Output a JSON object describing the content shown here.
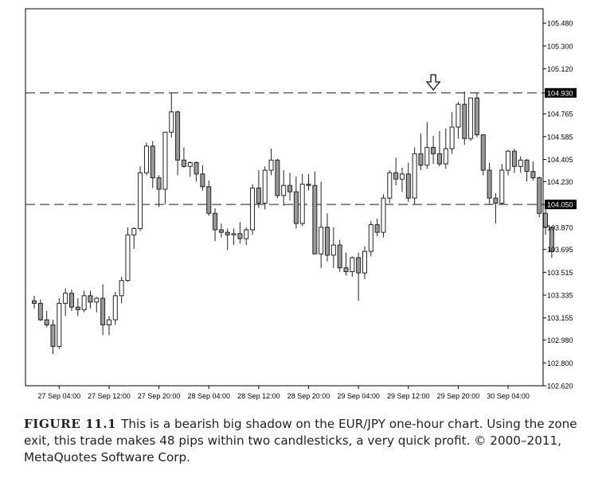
{
  "chart_data": {
    "type": "candlestick",
    "symbol": "EUR/JPY",
    "timeframe": "one-hour",
    "ylim": [
      102.62,
      105.6
    ],
    "y_ticks": [
      "105.480",
      "105.300",
      "105.120",
      "104.930",
      "104.765",
      "104.585",
      "104.405",
      "104.230",
      "104.050",
      "103.870",
      "103.695",
      "103.515",
      "103.335",
      "103.155",
      "102.980",
      "102.800",
      "102.620"
    ],
    "highlighted_ticks": [
      "104.930",
      "104.050"
    ],
    "x_tick_labels": [
      "27 Sep 04:00",
      "27 Sep 12:00",
      "27 Sep 20:00",
      "28 Sep 04:00",
      "28 Sep 12:00",
      "28 Sep 20:00",
      "29 Sep 04:00",
      "29 Sep 12:00",
      "29 Sep 20:00",
      "30 Sep 04:00"
    ],
    "x_tick_index": [
      4,
      12,
      20,
      28,
      36,
      44,
      52,
      60,
      68,
      76
    ],
    "horizontal_lines": [
      104.93,
      104.05
    ],
    "arrow": {
      "direction": "down",
      "at_index": 64
    },
    "candles": [
      [
        103.29,
        103.33,
        103.23,
        103.27
      ],
      [
        103.27,
        103.3,
        103.13,
        103.14
      ],
      [
        103.14,
        103.21,
        103.08,
        103.1
      ],
      [
        103.1,
        103.14,
        102.87,
        102.93
      ],
      [
        102.93,
        103.31,
        102.91,
        103.27
      ],
      [
        103.27,
        103.39,
        103.17,
        103.35
      ],
      [
        103.35,
        103.38,
        103.21,
        103.24
      ],
      [
        103.24,
        103.31,
        103.17,
        103.22
      ],
      [
        103.22,
        103.37,
        103.2,
        103.33
      ],
      [
        103.33,
        103.37,
        103.23,
        103.28
      ],
      [
        103.28,
        103.32,
        103.2,
        103.31
      ],
      [
        103.31,
        103.42,
        103.02,
        103.1
      ],
      [
        103.1,
        103.17,
        103.02,
        103.14
      ],
      [
        103.14,
        103.36,
        103.1,
        103.33
      ],
      [
        103.33,
        103.48,
        103.27,
        103.45
      ],
      [
        103.45,
        103.87,
        103.44,
        103.81
      ],
      [
        103.81,
        103.87,
        103.7,
        103.86
      ],
      [
        103.86,
        104.35,
        103.84,
        104.3
      ],
      [
        104.3,
        104.54,
        104.28,
        104.51
      ],
      [
        104.51,
        104.55,
        104.18,
        104.26
      ],
      [
        104.26,
        104.28,
        104.03,
        104.17
      ],
      [
        104.17,
        104.62,
        104.05,
        104.62
      ],
      [
        104.62,
        104.93,
        104.58,
        104.78
      ],
      [
        104.78,
        104.79,
        104.28,
        104.4
      ],
      [
        104.4,
        104.5,
        104.34,
        104.35
      ],
      [
        104.35,
        104.39,
        104.27,
        104.38
      ],
      [
        104.38,
        104.39,
        104.23,
        104.29
      ],
      [
        104.29,
        104.36,
        104.16,
        104.19
      ],
      [
        104.19,
        104.24,
        103.96,
        103.98
      ],
      [
        103.98,
        104.02,
        103.76,
        103.85
      ],
      [
        103.85,
        103.9,
        103.79,
        103.83
      ],
      [
        103.83,
        103.86,
        103.69,
        103.81
      ],
      [
        103.81,
        103.86,
        103.73,
        103.82
      ],
      [
        103.82,
        103.91,
        103.74,
        103.78
      ],
      [
        103.78,
        103.87,
        103.73,
        103.85
      ],
      [
        103.85,
        104.21,
        103.81,
        104.18
      ],
      [
        104.18,
        104.32,
        104.02,
        104.06
      ],
      [
        104.06,
        104.35,
        104.01,
        104.32
      ],
      [
        104.32,
        104.49,
        104.28,
        104.4
      ],
      [
        104.4,
        104.41,
        104.1,
        104.12
      ],
      [
        104.12,
        104.32,
        104.04,
        104.2
      ],
      [
        104.2,
        104.3,
        104.08,
        104.15
      ],
      [
        104.15,
        104.27,
        103.86,
        103.9
      ],
      [
        103.9,
        104.29,
        103.88,
        104.21
      ],
      [
        104.21,
        104.29,
        104.16,
        104.2
      ],
      [
        104.2,
        104.31,
        103.66,
        103.66
      ],
      [
        103.66,
        104.23,
        103.55,
        103.87
      ],
      [
        103.87,
        103.98,
        103.6,
        103.65
      ],
      [
        103.65,
        103.87,
        103.55,
        103.73
      ],
      [
        103.73,
        103.77,
        103.52,
        103.55
      ],
      [
        103.55,
        103.67,
        103.49,
        103.52
      ],
      [
        103.52,
        103.64,
        103.48,
        103.63
      ],
      [
        103.63,
        103.67,
        103.29,
        103.51
      ],
      [
        103.51,
        103.72,
        103.46,
        103.68
      ],
      [
        103.68,
        103.92,
        103.64,
        103.89
      ],
      [
        103.89,
        103.94,
        103.8,
        103.83
      ],
      [
        103.83,
        104.13,
        103.79,
        104.1
      ],
      [
        104.1,
        104.32,
        104.06,
        104.3
      ],
      [
        104.3,
        104.42,
        104.2,
        104.25
      ],
      [
        104.25,
        104.34,
        104.15,
        104.29
      ],
      [
        104.29,
        104.38,
        104.07,
        104.1
      ],
      [
        104.1,
        104.5,
        104.05,
        104.45
      ],
      [
        104.45,
        104.61,
        104.32,
        104.36
      ],
      [
        104.36,
        104.7,
        104.33,
        104.5
      ],
      [
        104.5,
        104.59,
        104.37,
        104.45
      ],
      [
        104.45,
        104.63,
        104.35,
        104.37
      ],
      [
        104.37,
        104.65,
        104.33,
        104.49
      ],
      [
        104.49,
        104.78,
        104.45,
        104.66
      ],
      [
        104.66,
        104.86,
        104.57,
        104.84
      ],
      [
        104.84,
        104.94,
        104.52,
        104.57
      ],
      [
        104.57,
        104.89,
        104.55,
        104.89
      ],
      [
        104.89,
        104.93,
        104.58,
        104.6
      ],
      [
        104.6,
        104.6,
        104.28,
        104.32
      ],
      [
        104.32,
        104.38,
        104.05,
        104.1
      ],
      [
        104.1,
        104.14,
        103.9,
        104.06
      ],
      [
        104.06,
        104.37,
        104.05,
        104.32
      ],
      [
        104.32,
        104.48,
        104.28,
        104.47
      ],
      [
        104.47,
        104.49,
        104.3,
        104.35
      ],
      [
        104.35,
        104.43,
        104.3,
        104.4
      ],
      [
        104.4,
        104.41,
        104.23,
        104.31
      ],
      [
        104.31,
        104.39,
        104.24,
        104.26
      ],
      [
        104.26,
        104.27,
        103.95,
        103.98
      ],
      [
        103.98,
        104.02,
        103.81,
        103.87
      ],
      [
        103.87,
        103.87,
        103.63,
        103.68
      ]
    ]
  },
  "caption": {
    "figure_label": "FIGURE 11.1",
    "text": "This is a bearish big shadow on the EUR/JPY one-hour chart. Using the zone exit, this trade makes 48 pips within two candlesticks, a very quick profit. © 2000–2011, MetaQuotes Software Corp."
  }
}
